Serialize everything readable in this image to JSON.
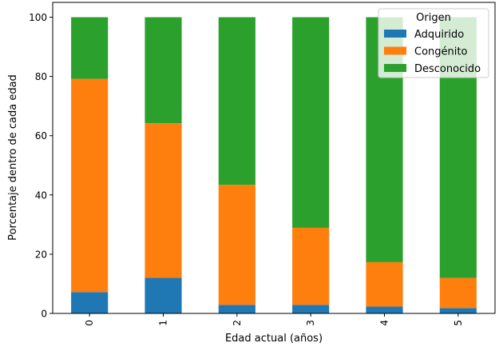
{
  "chart_data": {
    "type": "bar",
    "stacked": true,
    "title": "",
    "xlabel": "Edad actual (años)",
    "ylabel": "Porcentaje dentro de cada edad",
    "categories": [
      "0",
      "1",
      "2",
      "3",
      "4",
      "5"
    ],
    "ylim": [
      0,
      105
    ],
    "yticks": [
      0,
      20,
      40,
      60,
      80,
      100
    ],
    "grid": false,
    "legend": {
      "title": "Origen",
      "placement": "top-right"
    },
    "series": [
      {
        "name": "Adquirido",
        "color": "#1f77b4",
        "values": [
          7.2,
          12.0,
          2.9,
          2.9,
          2.3,
          1.8
        ]
      },
      {
        "name": "Congénito",
        "color": "#ff7f0e",
        "values": [
          72.0,
          52.2,
          40.5,
          26.0,
          15.0,
          10.2
        ]
      },
      {
        "name": "Desconocido",
        "color": "#2ca02c",
        "values": [
          20.8,
          35.8,
          56.6,
          71.1,
          82.7,
          88.0
        ]
      }
    ]
  }
}
